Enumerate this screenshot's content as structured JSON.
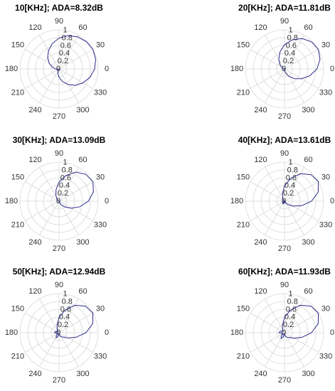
{
  "chart_data": [
    {
      "type": "polar",
      "title": "10[KHz]; ADA=8.32dB",
      "color": "#2b2b8a",
      "rlim": [
        0,
        1
      ],
      "rticks": [
        0,
        0.2,
        0.4,
        0.6,
        0.8,
        1
      ],
      "thetaticks": [
        0,
        30,
        60,
        90,
        120,
        150,
        180,
        210,
        240,
        270,
        300,
        330
      ],
      "theta": [
        0,
        15,
        30,
        45,
        60,
        75,
        90,
        105,
        120,
        135,
        150,
        165,
        180,
        195,
        210,
        225,
        240,
        255,
        270,
        285,
        300,
        315,
        330,
        345
      ],
      "r": [
        0.91,
        0.97,
        1.0,
        0.99,
        0.95,
        0.88,
        0.79,
        0.67,
        0.54,
        0.41,
        0.29,
        0.18,
        0.09,
        0.03,
        0.0,
        0.01,
        0.05,
        0.12,
        0.21,
        0.33,
        0.46,
        0.59,
        0.71,
        0.82
      ]
    },
    {
      "type": "polar",
      "title": "20[KHz]; ADA=11.81dB",
      "color": "#2b2b8a",
      "rlim": [
        0,
        1
      ],
      "rticks": [
        0,
        0.2,
        0.4,
        0.6,
        0.8,
        1
      ],
      "thetaticks": [
        0,
        30,
        60,
        90,
        120,
        150,
        180,
        210,
        240,
        270,
        300,
        330
      ],
      "theta": [
        0,
        15,
        30,
        45,
        60,
        75,
        90,
        105,
        120,
        135,
        150,
        165,
        180,
        195,
        210,
        225,
        240,
        255,
        270,
        285,
        300,
        315,
        330,
        345
      ],
      "r": [
        0.83,
        0.94,
        1.0,
        0.98,
        0.9,
        0.77,
        0.62,
        0.45,
        0.29,
        0.17,
        0.08,
        0.03,
        0.01,
        0.0,
        0.0,
        0.0,
        0.0,
        0.01,
        0.04,
        0.11,
        0.21,
        0.35,
        0.5,
        0.67
      ]
    },
    {
      "type": "polar",
      "title": "30[KHz]; ADA=13.09dB",
      "color": "#2b2b8a",
      "rlim": [
        0,
        1
      ],
      "rticks": [
        0,
        0.2,
        0.4,
        0.6,
        0.8,
        1
      ],
      "thetaticks": [
        0,
        30,
        60,
        90,
        120,
        150,
        180,
        210,
        240,
        270,
        300,
        330
      ],
      "theta": [
        0,
        15,
        30,
        45,
        60,
        75,
        90,
        105,
        120,
        135,
        150,
        165,
        180,
        195,
        210,
        225,
        240,
        255,
        270,
        285,
        300,
        315,
        330,
        345
      ],
      "r": [
        0.75,
        0.91,
        1.0,
        0.97,
        0.86,
        0.68,
        0.49,
        0.3,
        0.16,
        0.07,
        0.02,
        0.01,
        0.0,
        0.0,
        0.0,
        0.0,
        0.0,
        0.0,
        0.01,
        0.04,
        0.1,
        0.21,
        0.36,
        0.55
      ]
    },
    {
      "type": "polar",
      "title": "40[KHz]; ADA=13.61dB",
      "color": "#2b2b8a",
      "rlim": [
        0,
        1
      ],
      "rticks": [
        0,
        0.2,
        0.4,
        0.6,
        0.8,
        1
      ],
      "thetaticks": [
        0,
        30,
        60,
        90,
        120,
        150,
        180,
        210,
        240,
        270,
        300,
        330
      ],
      "theta": [
        0,
        15,
        30,
        45,
        60,
        75,
        90,
        105,
        120,
        135,
        150,
        165,
        180,
        195,
        210,
        225,
        240,
        255,
        270,
        285,
        300,
        315,
        330,
        345
      ],
      "r": [
        0.69,
        0.89,
        1.0,
        0.96,
        0.81,
        0.6,
        0.39,
        0.2,
        0.09,
        0.03,
        0.01,
        0.0,
        0.04,
        0.0,
        0.02,
        0.06,
        0.08,
        0.06,
        0.02,
        0.01,
        0.04,
        0.12,
        0.25,
        0.45
      ]
    },
    {
      "type": "polar",
      "title": "50[KHz]; ADA=12.94dB",
      "color": "#2b2b8a",
      "rlim": [
        0,
        1
      ],
      "rticks": [
        0,
        0.2,
        0.4,
        0.6,
        0.8,
        1
      ],
      "thetaticks": [
        0,
        30,
        60,
        90,
        120,
        150,
        180,
        210,
        240,
        270,
        300,
        330
      ],
      "theta": [
        0,
        15,
        30,
        45,
        60,
        75,
        90,
        105,
        120,
        135,
        150,
        165,
        180,
        195,
        210,
        225,
        240,
        255,
        270,
        285,
        300,
        315,
        330,
        345
      ],
      "r": [
        0.69,
        0.89,
        1.0,
        0.96,
        0.81,
        0.6,
        0.39,
        0.2,
        0.09,
        0.03,
        0.06,
        0.1,
        0.12,
        0.06,
        0.03,
        0.1,
        0.15,
        0.1,
        0.03,
        0.08,
        0.12,
        0.16,
        0.27,
        0.45
      ]
    },
    {
      "type": "polar",
      "title": "60[KHz]; ADA=11.93dB",
      "color": "#2b2b8a",
      "rlim": [
        0,
        1
      ],
      "rticks": [
        0,
        0.2,
        0.4,
        0.6,
        0.8,
        1
      ],
      "thetaticks": [
        0,
        30,
        60,
        90,
        120,
        150,
        180,
        210,
        240,
        270,
        300,
        330
      ],
      "theta": [
        0,
        15,
        30,
        45,
        60,
        75,
        90,
        105,
        120,
        135,
        150,
        165,
        180,
        195,
        210,
        225,
        240,
        255,
        270,
        285,
        300,
        315,
        330,
        345
      ],
      "r": [
        0.69,
        0.89,
        1.0,
        0.96,
        0.81,
        0.6,
        0.39,
        0.2,
        0.09,
        0.05,
        0.08,
        0.12,
        0.14,
        0.07,
        0.04,
        0.12,
        0.17,
        0.11,
        0.03,
        0.1,
        0.14,
        0.17,
        0.28,
        0.46
      ]
    }
  ]
}
